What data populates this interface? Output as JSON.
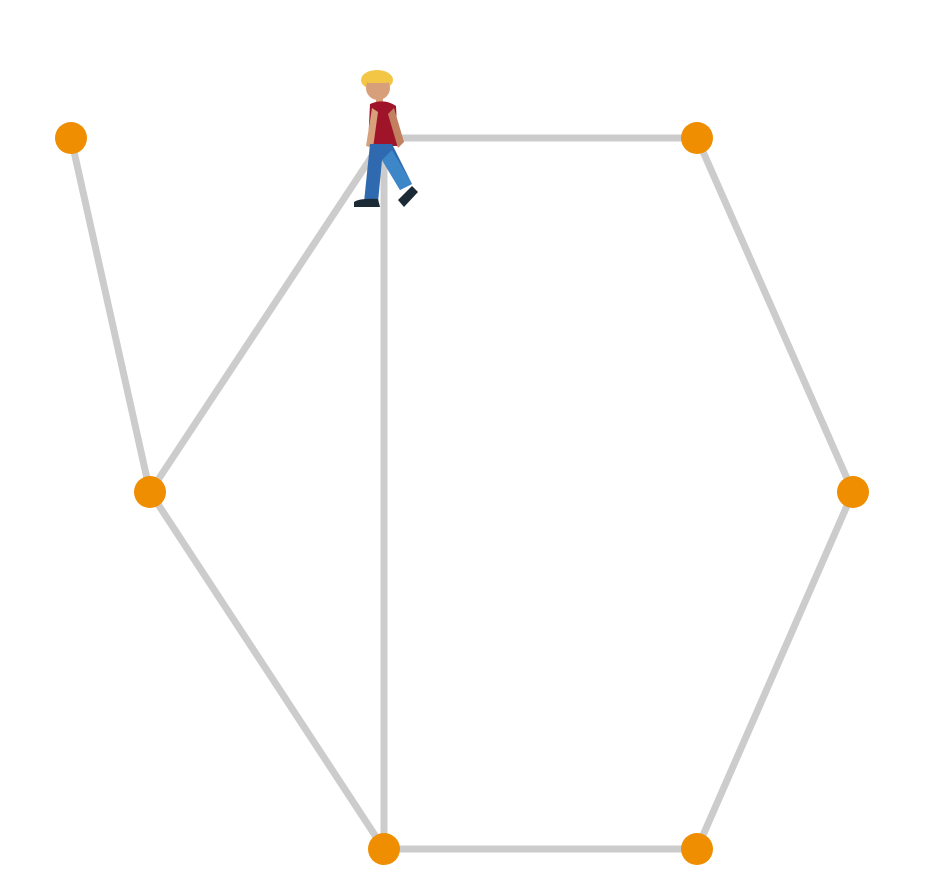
{
  "game": {
    "type": "graph-walk",
    "player_icon": "person-walking-icon",
    "player_node": "n3",
    "node_color": "#ee8e00",
    "edge_color": "#cccccc",
    "nodes": [
      {
        "id": "n1"
      },
      {
        "id": "n2"
      },
      {
        "id": "n3"
      },
      {
        "id": "n4"
      },
      {
        "id": "n5"
      },
      {
        "id": "n6"
      },
      {
        "id": "n7"
      },
      {
        "id": "n8"
      }
    ],
    "edges": [
      [
        "n1",
        "n2"
      ],
      [
        "n2",
        "n3"
      ],
      [
        "n2",
        "n6"
      ],
      [
        "n3",
        "n4"
      ],
      [
        "n3",
        "n6"
      ],
      [
        "n4",
        "n5"
      ],
      [
        "n5",
        "n8"
      ],
      [
        "n6",
        "n8"
      ]
    ]
  }
}
